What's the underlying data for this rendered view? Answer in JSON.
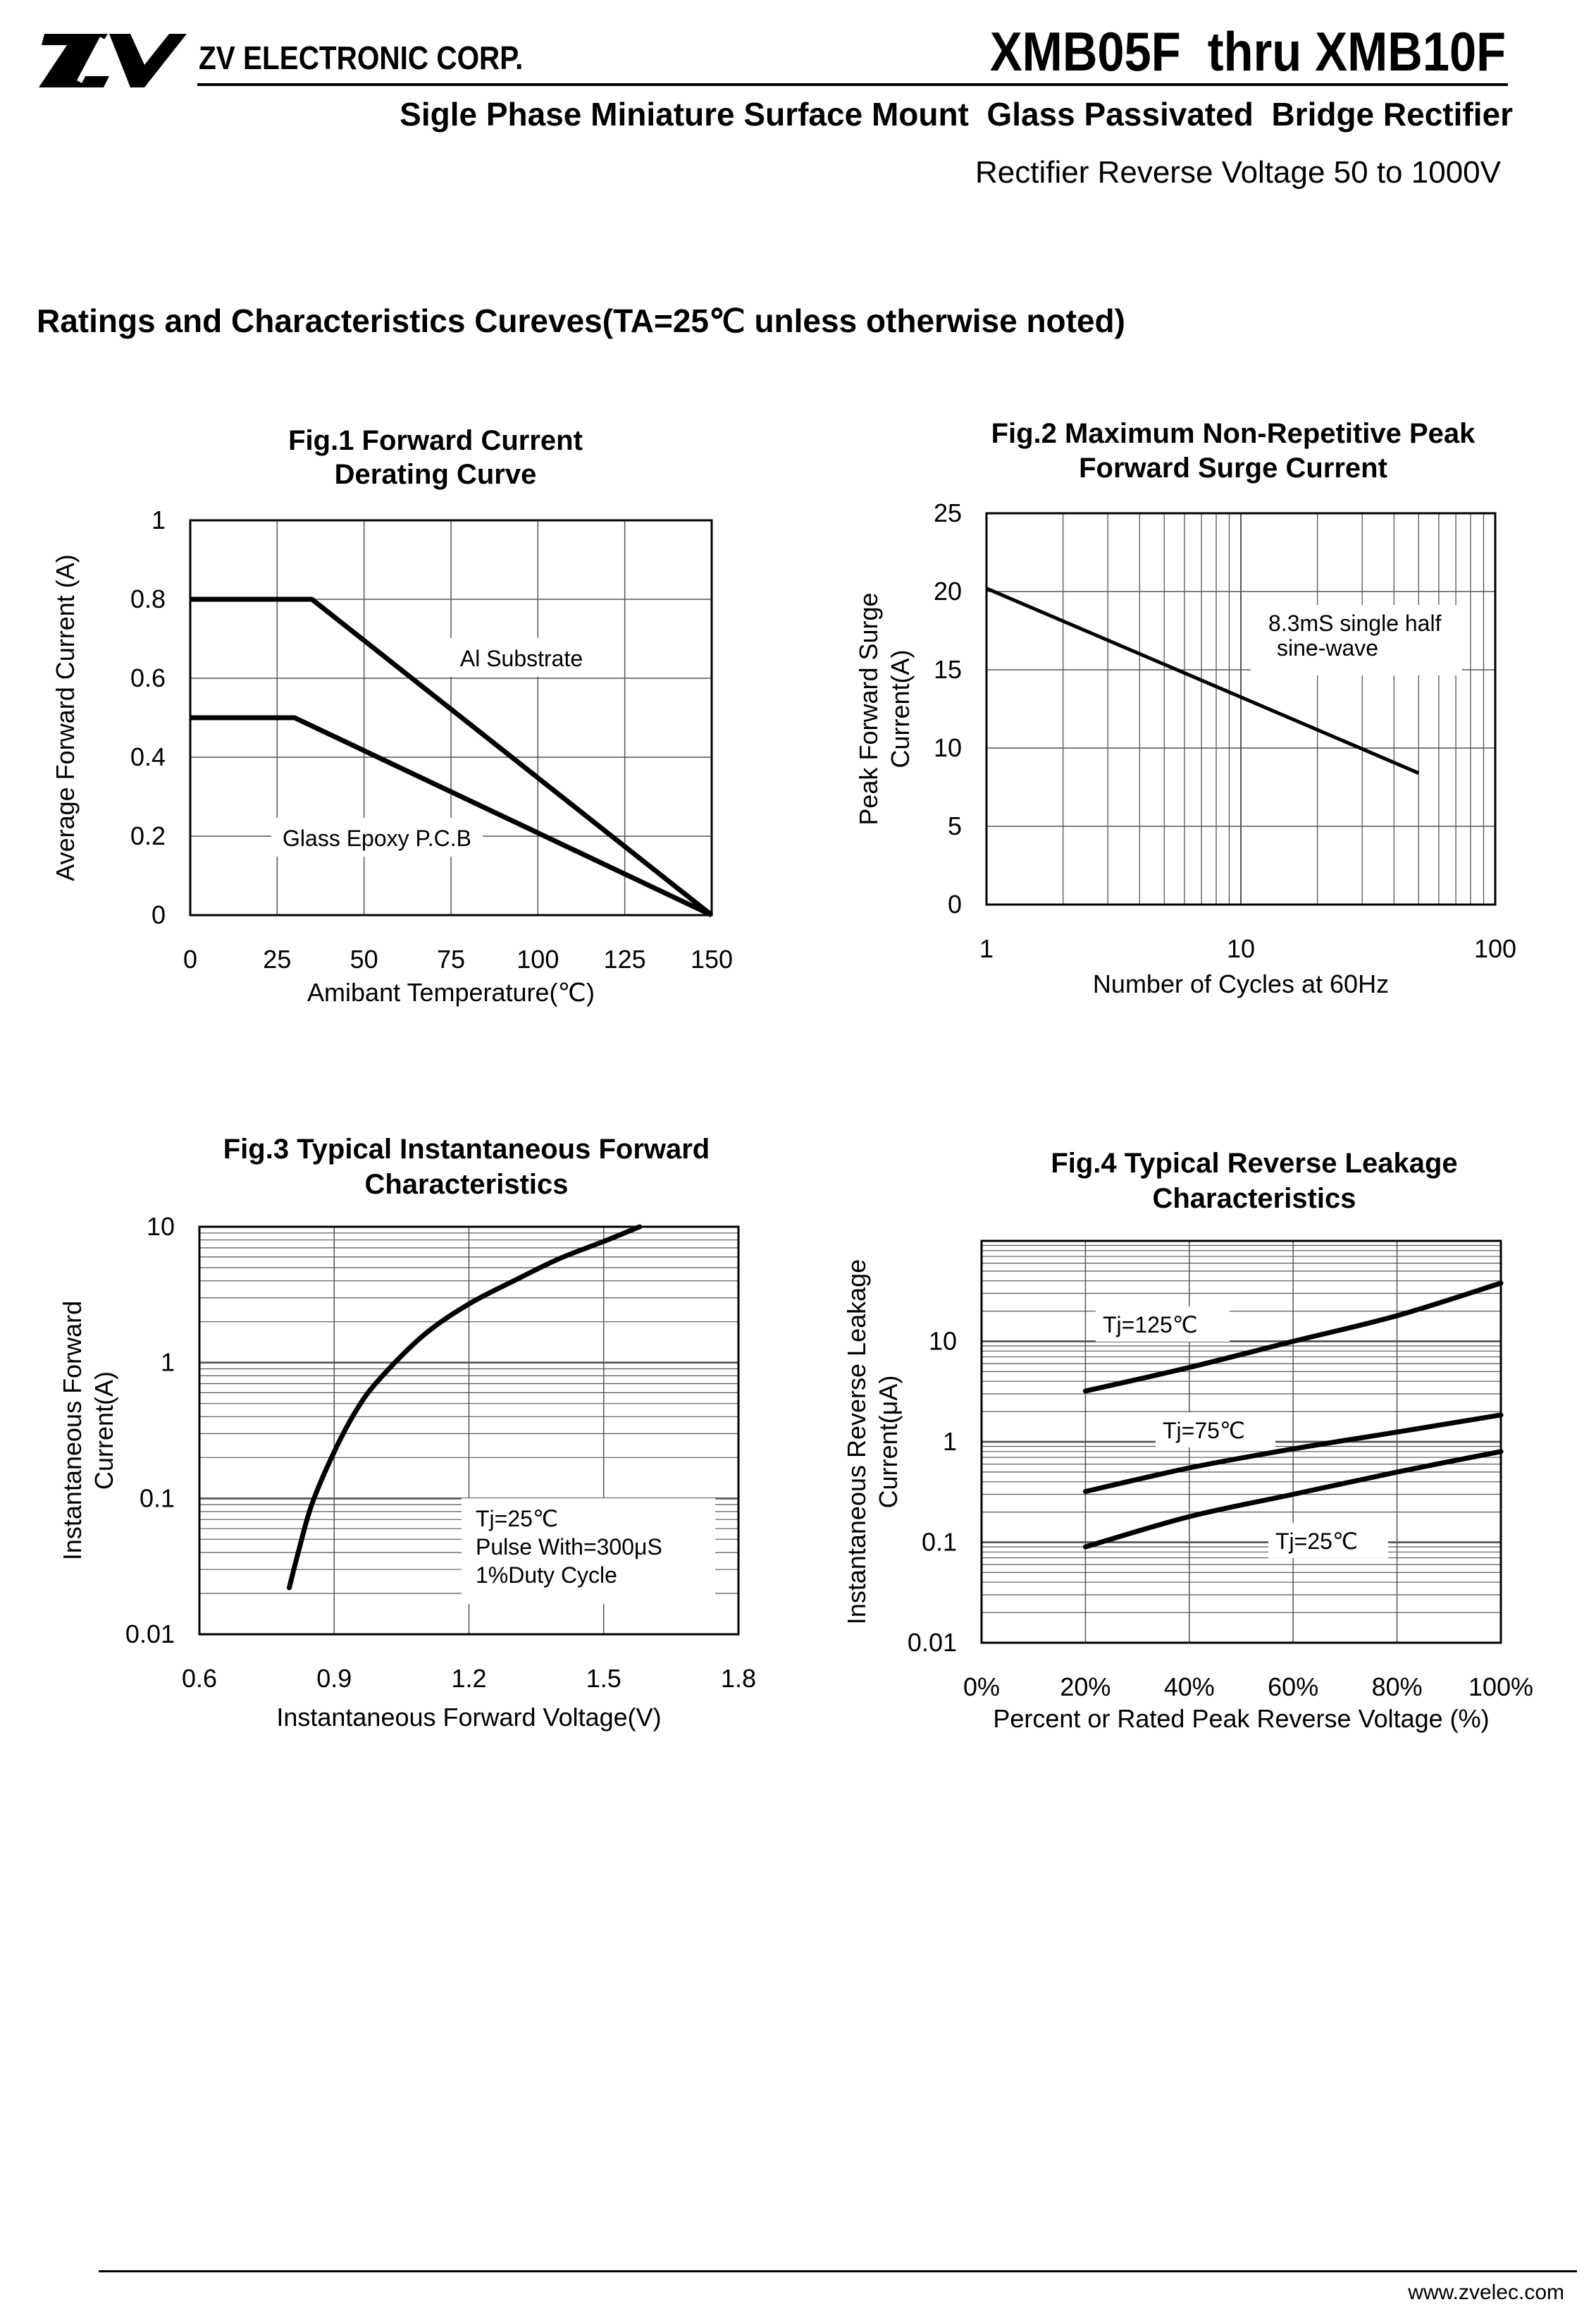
{
  "header": {
    "company": "ZV ELECTRONIC CORP.",
    "part_range": "XMB05F  thru XMB10F",
    "subtitle": "Sigle Phase Miniature Surface Mount  Glass Passivated  Bridge Rectifier",
    "voltage_range": "Rectifier Reverse Voltage 50 to 1000V"
  },
  "section_heading": "Ratings and Characteristics Cureves(TA=25℃ unless otherwise noted)",
  "footer": {
    "website": "www.zvelec.com"
  },
  "colors": {
    "line": "#000000",
    "grid": "#555555",
    "background": "#ffffff"
  },
  "chart_data": [
    {
      "id": "fig1",
      "type": "line",
      "title": [
        "Fig.1 Forward Current",
        "Derating Curve"
      ],
      "xlabel": "Amibant Temperature(℃)",
      "ylabel": "Average Forward Current (A)",
      "xlim": [
        0,
        150
      ],
      "ylim": [
        0,
        1
      ],
      "xticks": [
        "0",
        "25",
        "50",
        "75",
        "100",
        "125",
        "150"
      ],
      "yticks": [
        "0",
        "0.2",
        "0.4",
        "0.6",
        "0.8",
        "1"
      ],
      "grid": true,
      "series": [
        {
          "name": "Al  Substrate",
          "points": [
            [
              0,
              0.8
            ],
            [
              35,
              0.8
            ],
            [
              150,
              0
            ]
          ]
        },
        {
          "name": "Glass Epoxy P.C.B",
          "points": [
            [
              0,
              0.5
            ],
            [
              30,
              0.5
            ],
            [
              150,
              0
            ]
          ]
        }
      ]
    },
    {
      "id": "fig2",
      "type": "line",
      "title": [
        "Fig.2 Maximum Non-Repetitive Peak",
        "Forward Surge Current"
      ],
      "xlabel": "Number of Cycles at 60Hz",
      "ylabel": [
        "Peak Forward Surge",
        "Current(A)"
      ],
      "xscale": "log",
      "xlim": [
        1,
        100
      ],
      "ylim": [
        0,
        25
      ],
      "xticks": [
        "1",
        "10",
        "100"
      ],
      "yticks": [
        "0",
        "5",
        "10",
        "15",
        "20",
        "25"
      ],
      "grid": true,
      "annotation": [
        "8.3mS single half",
        "sine-wave"
      ],
      "series": [
        {
          "name": "IFSM",
          "points": [
            [
              1,
              20.2
            ],
            [
              50,
              8.4
            ]
          ]
        }
      ]
    },
    {
      "id": "fig3",
      "type": "line",
      "title": [
        "Fig.3 Typical Instantaneous Forward",
        "Characteristics"
      ],
      "xlabel": "Instantaneous Forward Voltage(V)",
      "ylabel": [
        "Instantaneous Forward",
        "Current(A)"
      ],
      "yscale": "log",
      "xlim": [
        0.6,
        1.8
      ],
      "ylim": [
        0.01,
        10
      ],
      "xticks": [
        "0.6",
        "0.9",
        "1.2",
        "1.5",
        "1.8"
      ],
      "yticks": [
        "0.01",
        "0.1",
        "1",
        "10"
      ],
      "grid": true,
      "annotation": [
        "Tj=25℃",
        "Pulse  With=300μS",
        "1%Duty Cycle"
      ],
      "series": [
        {
          "name": "Tj=25℃",
          "points": [
            [
              0.8,
              0.022
            ],
            [
              0.82,
              0.04
            ],
            [
              0.85,
              0.09
            ],
            [
              0.9,
              0.22
            ],
            [
              0.95,
              0.45
            ],
            [
              1.0,
              0.75
            ],
            [
              1.1,
              1.6
            ],
            [
              1.2,
              2.7
            ],
            [
              1.3,
              4.0
            ],
            [
              1.4,
              5.8
            ],
            [
              1.5,
              7.8
            ],
            [
              1.58,
              10
            ]
          ]
        }
      ]
    },
    {
      "id": "fig4",
      "type": "line",
      "title": [
        "Fig.4 Typical Reverse Leakage",
        "Characteristics"
      ],
      "xlabel": "Percent or Rated Peak Reverse Voltage (%)",
      "ylabel": [
        "Instantaneous Reverse Leakage",
        "Current(μA)"
      ],
      "yscale": "log",
      "xlim": [
        0,
        100
      ],
      "ylim": [
        0.01,
        100
      ],
      "xticks": [
        "0%",
        "20%",
        "40%",
        "60%",
        "80%",
        "100%"
      ],
      "yticks": [
        "0.01",
        "0.1",
        "1",
        "10"
      ],
      "grid": true,
      "series": [
        {
          "name": "Tj=125℃",
          "points": [
            [
              20,
              3.2
            ],
            [
              40,
              5.5
            ],
            [
              60,
              10
            ],
            [
              80,
              18
            ],
            [
              100,
              38
            ]
          ]
        },
        {
          "name": "Tj=75℃",
          "points": [
            [
              20,
              0.32
            ],
            [
              40,
              0.55
            ],
            [
              60,
              0.85
            ],
            [
              80,
              1.25
            ],
            [
              100,
              1.85
            ]
          ]
        },
        {
          "name": "Tj=25℃",
          "points": [
            [
              20,
              0.09
            ],
            [
              40,
              0.18
            ],
            [
              60,
              0.3
            ],
            [
              80,
              0.5
            ],
            [
              100,
              0.8
            ]
          ]
        }
      ]
    }
  ]
}
